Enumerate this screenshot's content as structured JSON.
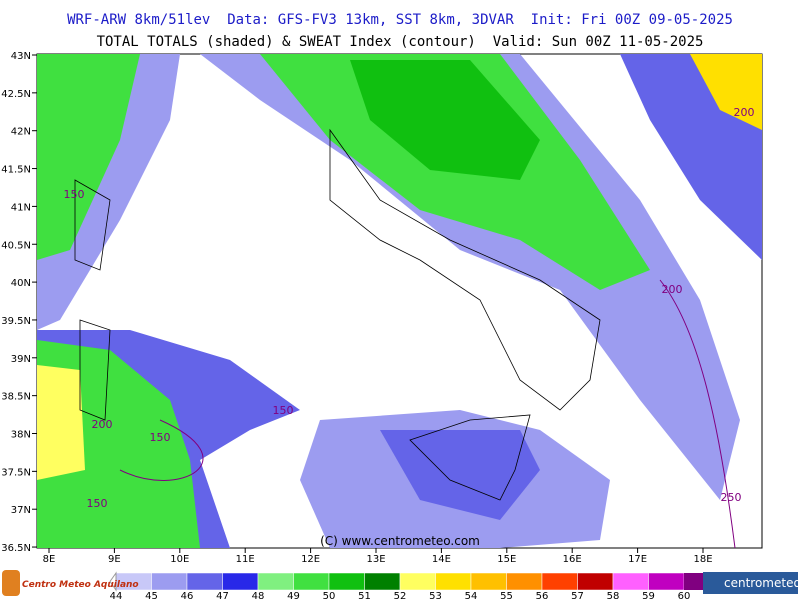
{
  "header": {
    "line1": "WRF-ARW 8km/51lev  Data: GFS-FV3 13km, SST 8km, 3DVAR  Init: Fri 00Z 09-05-2025",
    "line2": "TOTAL TOTALS (shaded) & SWEAT Index (contour)  Valid: Sun 00Z 11-05-2025"
  },
  "map": {
    "lat_labels": [
      "43N",
      "42.5N",
      "42N",
      "41.5N",
      "41N",
      "40.5N",
      "40N",
      "39.5N",
      "39N",
      "38.5N",
      "38N",
      "37.5N",
      "37N",
      "36.5N"
    ],
    "lon_labels": [
      "8E",
      "9E",
      "10E",
      "11E",
      "12E",
      "13E",
      "14E",
      "15E",
      "16E",
      "17E",
      "18E"
    ],
    "contour_labels": [
      "150",
      "200",
      "200",
      "150",
      "200",
      "150",
      "150",
      "250"
    ],
    "copyright": "(C) www.centrometeo.com"
  },
  "colorbar": {
    "labels": [
      44,
      45,
      46,
      47,
      48,
      49,
      50,
      51,
      52,
      53,
      54,
      55,
      56,
      57,
      58,
      59,
      60
    ],
    "colors": [
      "#c8c8f8",
      "#9c9cf0",
      "#6464e8",
      "#2828e8",
      "#80f080",
      "#40e040",
      "#10c010",
      "#008000",
      "#ffff60",
      "#ffe000",
      "#ffc000",
      "#ff9000",
      "#ff4000",
      "#c00000",
      "#ff60ff",
      "#c000c0",
      "#800080"
    ]
  },
  "logos": {
    "left": "Centro Meteo Aquilano",
    "right": "centrometeo"
  }
}
